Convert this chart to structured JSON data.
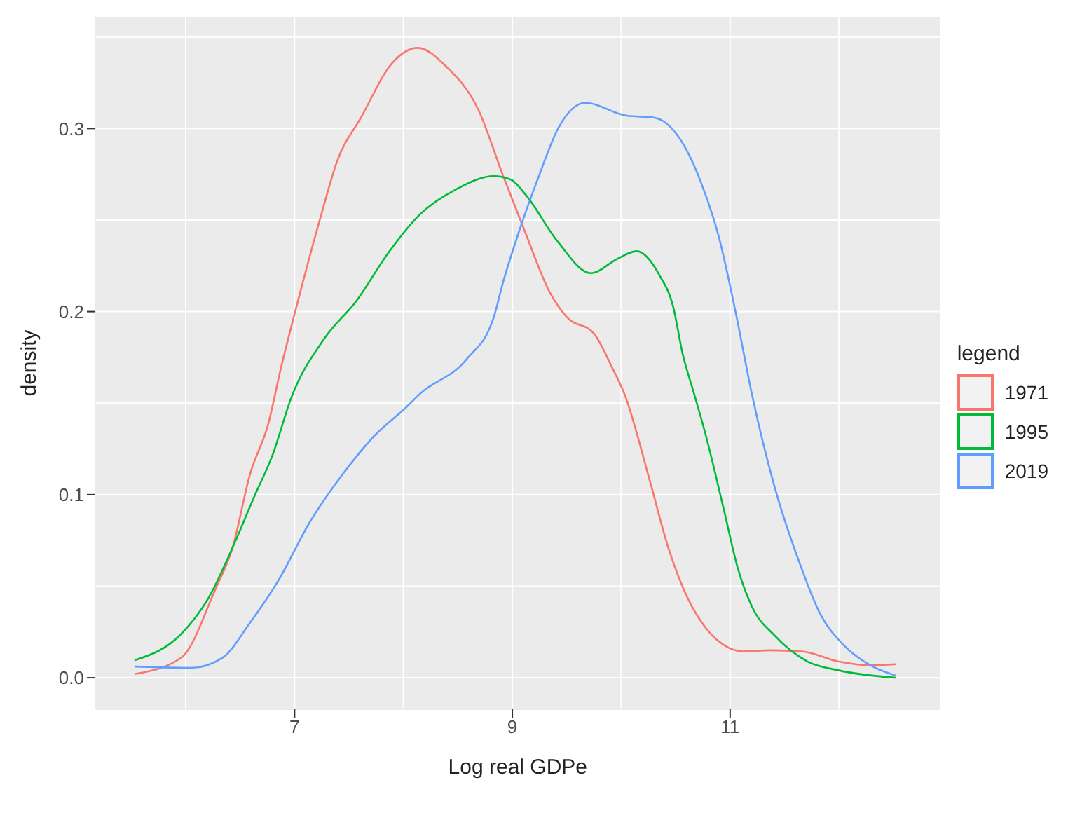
{
  "chart_data": {
    "type": "line",
    "xlabel": "Log real GDPe",
    "ylabel": "density",
    "legend_title": "legend",
    "legend": "right",
    "grid": true,
    "marker": "none",
    "line_style": "solid",
    "xlim": [
      5.17,
      12.93
    ],
    "xticks": [
      7,
      9,
      11
    ],
    "ylim": [
      -0.0172,
      0.361
    ],
    "yticks": [
      {
        "value": 0,
        "label": "0.0"
      },
      0.1,
      0.2,
      0.3
    ],
    "series": [
      {
        "name": "1971",
        "color": "#f8766d",
        "x": [
          5.53,
          5.96,
          6.27,
          6.43,
          6.59,
          6.76,
          6.87,
          7.01,
          7.25,
          7.39,
          7.61,
          7.9,
          8.13,
          8.39,
          8.69,
          8.91,
          9.12,
          9.34,
          9.5,
          9.75,
          9.92,
          10.03,
          10.27,
          10.43,
          10.61,
          10.77,
          10.94,
          11.12,
          11.37,
          11.66,
          12.0,
          12.29,
          12.52
        ],
        "values": [
          0.002,
          0.011,
          0.048,
          0.071,
          0.111,
          0.139,
          0.168,
          0.201,
          0.254,
          0.282,
          0.306,
          0.336,
          0.344,
          0.334,
          0.31,
          0.275,
          0.243,
          0.211,
          0.197,
          0.188,
          0.169,
          0.155,
          0.106,
          0.0715,
          0.0436,
          0.0277,
          0.018,
          0.0144,
          0.015,
          0.0144,
          0.0088,
          0.0068,
          0.0074
        ]
      },
      {
        "name": "1995",
        "color": "#00ba38",
        "x": [
          5.53,
          5.96,
          6.21,
          6.43,
          6.63,
          6.8,
          6.97,
          7.27,
          7.57,
          7.86,
          8.15,
          8.49,
          8.83,
          8.99,
          9.12,
          9.42,
          9.72,
          9.97,
          10.14,
          10.35,
          10.48,
          10.56,
          10.67,
          10.77,
          10.94,
          11.07,
          11.2,
          11.41,
          11.71,
          12.0,
          12.52
        ],
        "values": [
          0.0095,
          0.024,
          0.0436,
          0.071,
          0.099,
          0.122,
          0.153,
          0.185,
          0.206,
          0.232,
          0.253,
          0.267,
          0.274,
          0.272,
          0.264,
          0.238,
          0.221,
          0.229,
          0.233,
          0.22,
          0.202,
          0.178,
          0.155,
          0.134,
          0.0925,
          0.06,
          0.039,
          0.023,
          0.0089,
          0.004,
          0.0
        ]
      },
      {
        "name": "2019",
        "color": "#619cff",
        "x": [
          5.53,
          6.05,
          6.34,
          6.59,
          6.85,
          7.14,
          7.44,
          7.73,
          8.03,
          8.15,
          8.58,
          8.83,
          8.91,
          9.08,
          9.25,
          9.42,
          9.67,
          10.05,
          10.3,
          10.52,
          10.73,
          10.9,
          11.06,
          11.2,
          11.41,
          11.63,
          11.83,
          12.04,
          12.29,
          12.52
        ],
        "values": [
          0.0061,
          0.0054,
          0.011,
          0.03,
          0.053,
          0.085,
          0.111,
          0.132,
          0.148,
          0.155,
          0.174,
          0.197,
          0.215,
          0.247,
          0.275,
          0.3,
          0.314,
          0.307,
          0.306,
          0.296,
          0.271,
          0.24,
          0.197,
          0.155,
          0.104,
          0.064,
          0.0346,
          0.018,
          0.0068,
          0.0012
        ]
      }
    ]
  }
}
